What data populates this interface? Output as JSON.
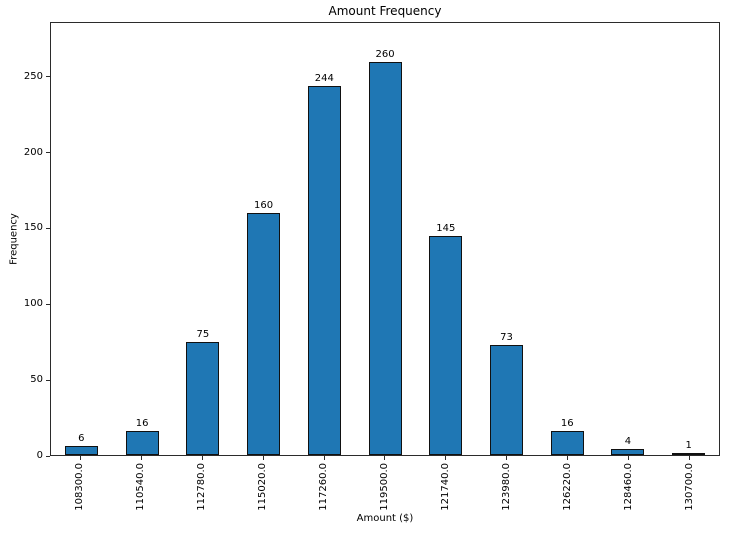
{
  "chart_data": {
    "type": "bar",
    "title": "Amount Frequency",
    "xlabel": "Amount ($)",
    "ylabel": "Frequency",
    "categories": [
      "108300.0",
      "110540.0",
      "112780.0",
      "115020.0",
      "117260.0",
      "119500.0",
      "121740.0",
      "123980.0",
      "126220.0",
      "128460.0",
      "130700.0"
    ],
    "values": [
      6,
      16,
      75,
      160,
      244,
      260,
      145,
      73,
      16,
      4,
      1
    ],
    "yticks": [
      0,
      50,
      100,
      150,
      200,
      250
    ],
    "ylim": [
      0,
      286
    ],
    "xtick_rotation_deg": 90,
    "grid": false,
    "legend_position": "none",
    "value_labels_shown": true,
    "colors": {
      "bar_fill": "#1f77b4",
      "bar_edge": "#111111",
      "spine": "#2b2b2b",
      "text": "#000000",
      "background": "#ffffff"
    }
  }
}
